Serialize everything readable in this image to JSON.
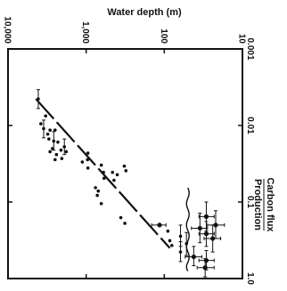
{
  "chart_data": {
    "type": "scatter",
    "orientation": "rotated 90° clockwise (water depth on the horizontal axis, carbon flux/production on the vertical axis)",
    "title": "",
    "xlabel": "Water depth (m)",
    "ylabel_lines": [
      "Carbon flux",
      "Production"
    ],
    "x_axis": {
      "scale": "log",
      "direction": "reversed",
      "range": [
        10000,
        10
      ],
      "ticks": [
        10000,
        1000,
        100,
        10
      ],
      "tick_labels": [
        "10,000",
        "1,000",
        "100",
        "10"
      ]
    },
    "y_axis": {
      "scale": "log",
      "direction": "top to bottom",
      "range": [
        0.001,
        1.0
      ],
      "ticks": [
        0.001,
        0.01,
        0.1,
        1.0
      ],
      "tick_labels": [
        "0.001",
        "0.01",
        "0.1",
        "1.0"
      ]
    },
    "grid": false,
    "trend_line": {
      "style": "dashed",
      "points": [
        {
          "x": 4400,
          "y": 0.0045
        },
        {
          "x": 85,
          "y": 0.4
        }
      ]
    },
    "wavy_line": {
      "x": 50,
      "y_range": [
        0.065,
        0.8
      ]
    },
    "series": [
      {
        "points": [
          {
            "x": 4100,
            "y": 0.0045,
            "yerr": [
              0.0034,
              0.006
            ]
          },
          {
            "x": 3300,
            "y": 0.0075
          },
          {
            "x": 3800,
            "y": 0.0095
          },
          {
            "x": 3500,
            "y": 0.011,
            "yerr": [
              0.0085,
              0.0145
            ]
          },
          {
            "x": 2900,
            "y": 0.0115
          },
          {
            "x": 3100,
            "y": 0.013
          },
          {
            "x": 2500,
            "y": 0.0115
          },
          {
            "x": 3000,
            "y": 0.015
          },
          {
            "x": 2600,
            "y": 0.016,
            "yerr": [
              0.012,
              0.021
            ]
          },
          {
            "x": 2300,
            "y": 0.0165
          },
          {
            "x": 2700,
            "y": 0.02
          },
          {
            "x": 2900,
            "y": 0.022
          },
          {
            "x": 2400,
            "y": 0.024
          },
          {
            "x": 2100,
            "y": 0.021
          },
          {
            "x": 1900,
            "y": 0.019,
            "yerr": [
              0.015,
              0.024
            ]
          },
          {
            "x": 1800,
            "y": 0.022
          },
          {
            "x": 2050,
            "y": 0.027
          },
          {
            "x": 2500,
            "y": 0.028
          },
          {
            "x": 950,
            "y": 0.023
          },
          {
            "x": 960,
            "y": 0.028
          },
          {
            "x": 1120,
            "y": 0.03
          },
          {
            "x": 950,
            "y": 0.036
          },
          {
            "x": 640,
            "y": 0.033
          },
          {
            "x": 600,
            "y": 0.041
          },
          {
            "x": 590,
            "y": 0.049
          },
          {
            "x": 760,
            "y": 0.065
          },
          {
            "x": 700,
            "y": 0.072
          },
          {
            "x": 460,
            "y": 0.041
          },
          {
            "x": 440,
            "y": 0.052
          },
          {
            "x": 400,
            "y": 0.044
          },
          {
            "x": 325,
            "y": 0.034
          },
          {
            "x": 310,
            "y": 0.039
          },
          {
            "x": 720,
            "y": 0.082
          },
          {
            "x": 640,
            "y": 0.105
          },
          {
            "x": 360,
            "y": 0.16
          },
          {
            "x": 320,
            "y": 0.19
          },
          {
            "x": 115,
            "y": 0.2,
            "xerr": [
              95,
              145
            ]
          },
          {
            "x": 90,
            "y": 0.24
          },
          {
            "x": 85,
            "y": 0.32
          },
          {
            "x": 80,
            "y": 0.37
          },
          {
            "x": 62,
            "y": 0.28,
            "yerr": [
              0.2,
              0.38
            ]
          },
          {
            "x": 62,
            "y": 0.45,
            "yerr": [
              0.33,
              0.6
            ]
          },
          {
            "x": 52,
            "y": 0.35,
            "yerr": [
              0.25,
              0.5
            ]
          },
          {
            "x": 35,
            "y": 0.22,
            "xerr": [
              28,
              45
            ],
            "yerr": [
              0.14,
              0.34
            ]
          },
          {
            "x": 29,
            "y": 0.155,
            "xerr": [
              23,
              36
            ],
            "yerr": [
              0.1,
              0.24
            ]
          },
          {
            "x": 22,
            "y": 0.2,
            "xerr": [
              17,
              28
            ],
            "yerr": [
              0.13,
              0.3
            ]
          },
          {
            "x": 29,
            "y": 0.26,
            "xerr": [
              23,
              36
            ],
            "yerr": [
              0.18,
              0.38
            ]
          },
          {
            "x": 24,
            "y": 0.3,
            "xerr": [
              19,
              31
            ],
            "yerr": [
              0.2,
              0.45
            ]
          },
          {
            "x": 42,
            "y": 0.52,
            "xerr": [
              33,
              54
            ],
            "yerr": [
              0.38,
              0.68
            ]
          },
          {
            "x": 29,
            "y": 0.58,
            "xerr": [
              23,
              36
            ],
            "yerr": [
              0.43,
              0.77
            ]
          },
          {
            "x": 30,
            "y": 0.72,
            "xerr": [
              23,
              38
            ],
            "yerr": [
              0.55,
              0.95
            ]
          }
        ]
      }
    ]
  }
}
